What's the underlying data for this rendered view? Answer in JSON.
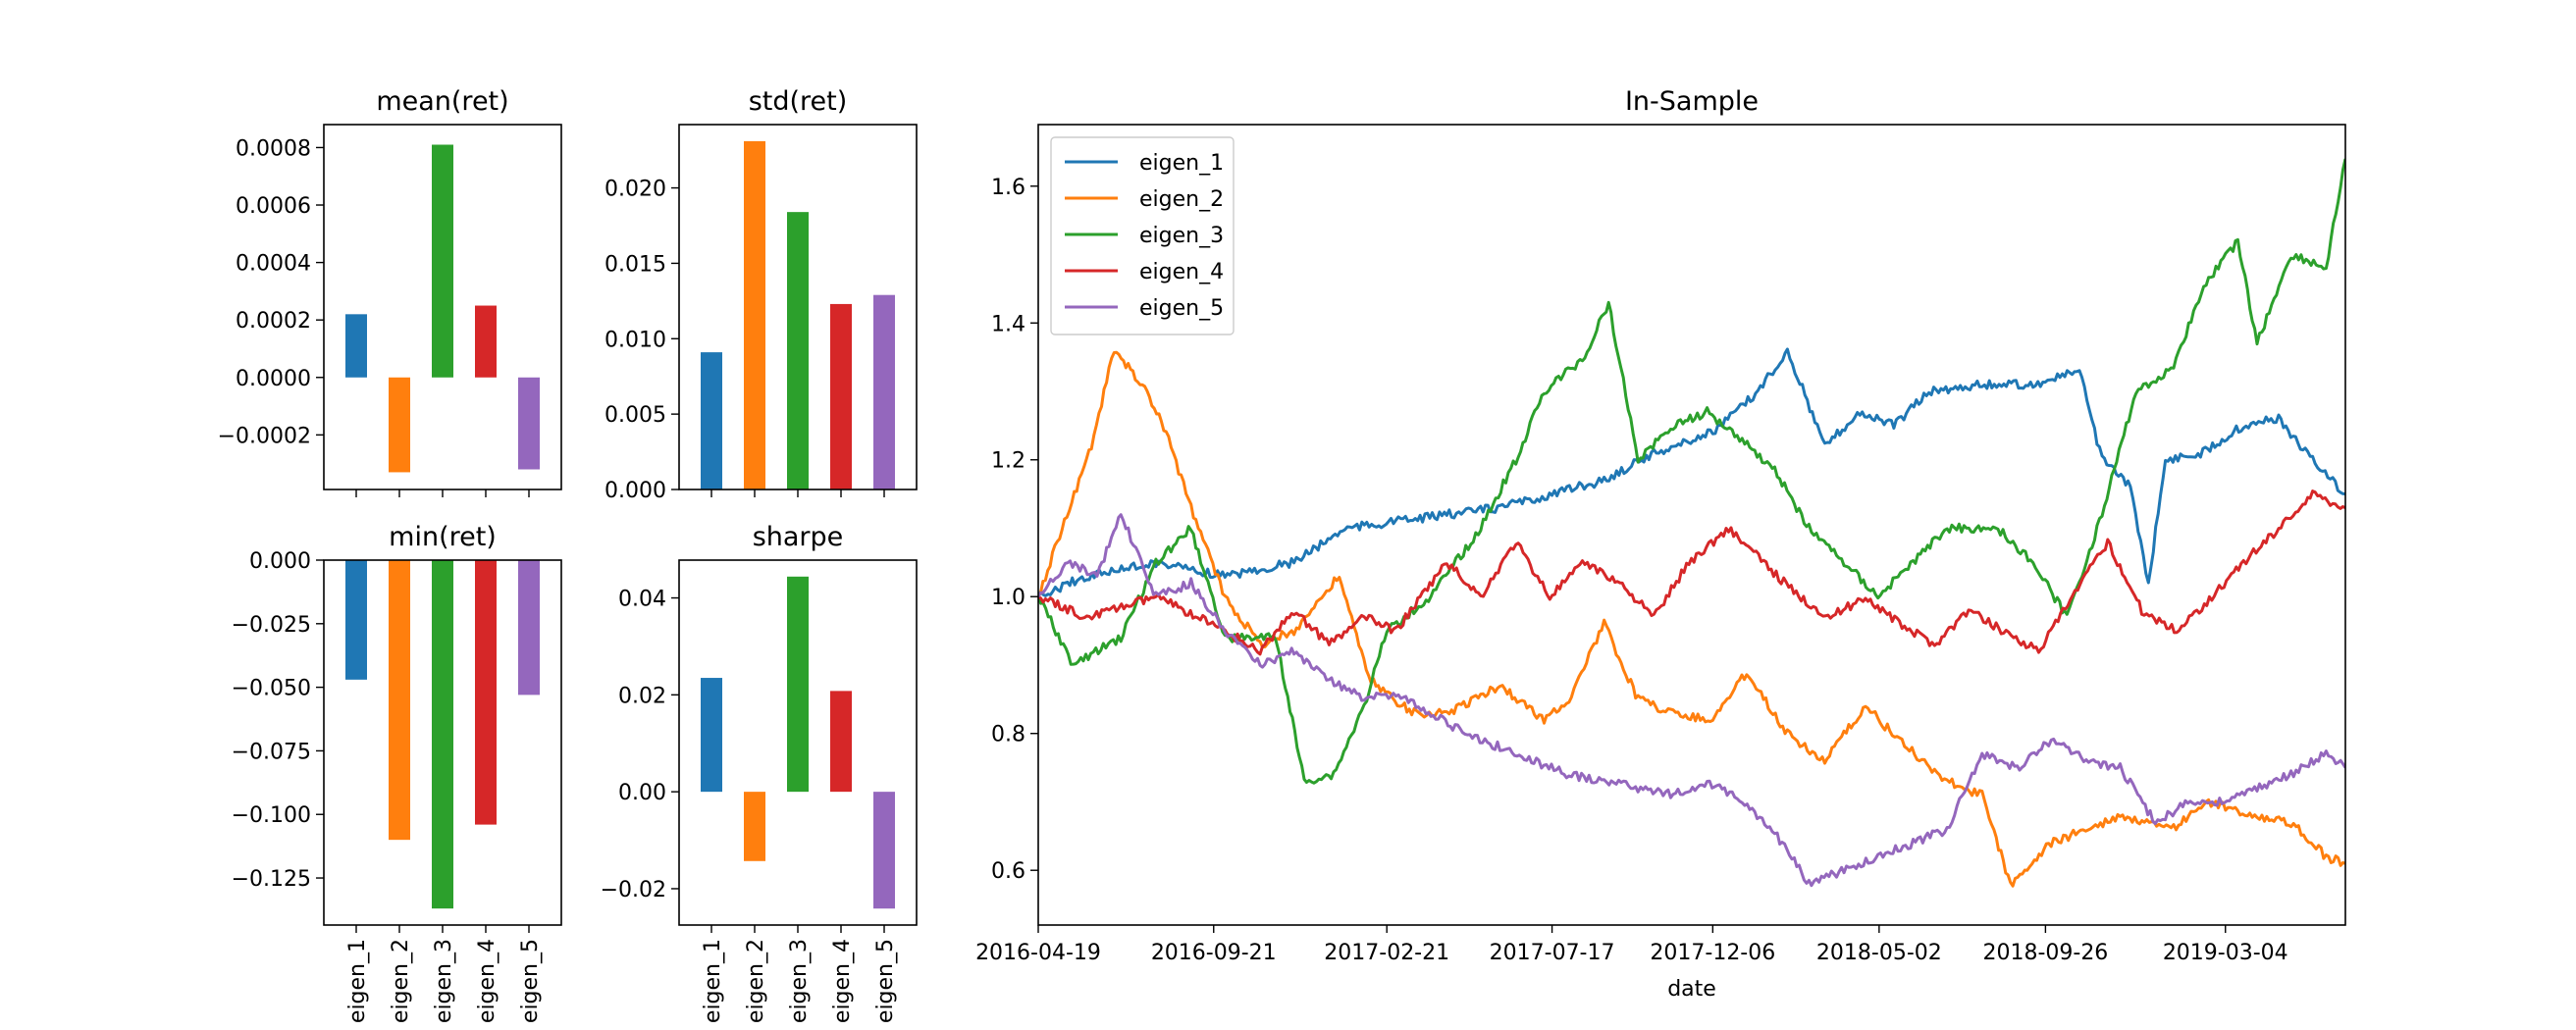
{
  "colors": {
    "eigen_1": "#1f77b4",
    "eigen_2": "#ff7f0e",
    "eigen_3": "#2ca02c",
    "eigen_4": "#d62728",
    "eigen_5": "#9467bd"
  },
  "chart_data": [
    {
      "type": "bar",
      "title": "mean(ret)",
      "categories": [
        "eigen_1",
        "eigen_2",
        "eigen_3",
        "eigen_4",
        "eigen_5"
      ],
      "values": [
        0.00022,
        -0.00033,
        0.00081,
        0.00025,
        -0.00032
      ],
      "ylim": [
        -0.00039,
        0.00088
      ],
      "yticks": [
        -0.0002,
        0.0,
        0.0002,
        0.0004,
        0.0006,
        0.0008
      ],
      "yticklabels": [
        "−0.0002",
        "0.0000",
        "0.0002",
        "0.0004",
        "0.0006",
        "0.0008"
      ],
      "show_xticklabels": false
    },
    {
      "type": "bar",
      "title": "std(ret)",
      "categories": [
        "eigen_1",
        "eigen_2",
        "eigen_3",
        "eigen_4",
        "eigen_5"
      ],
      "values": [
        0.0091,
        0.0231,
        0.0184,
        0.0123,
        0.0129
      ],
      "ylim": [
        0,
        0.0242
      ],
      "yticks": [
        0.0,
        0.005,
        0.01,
        0.015,
        0.02
      ],
      "yticklabels": [
        "0.000",
        "0.005",
        "0.010",
        "0.015",
        "0.020"
      ],
      "show_xticklabels": false
    },
    {
      "type": "bar",
      "title": "min(ret)",
      "categories": [
        "eigen_1",
        "eigen_2",
        "eigen_3",
        "eigen_4",
        "eigen_5"
      ],
      "values": [
        -0.047,
        -0.11,
        -0.137,
        -0.104,
        -0.053
      ],
      "ylim": [
        -0.1435,
        0
      ],
      "yticks": [
        -0.125,
        -0.1,
        -0.075,
        -0.05,
        -0.025,
        0.0
      ],
      "yticklabels": [
        "−0.125",
        "−0.100",
        "−0.075",
        "−0.050",
        "−0.025",
        "0.000"
      ],
      "show_xticklabels": true
    },
    {
      "type": "bar",
      "title": "sharpe",
      "categories": [
        "eigen_1",
        "eigen_2",
        "eigen_3",
        "eigen_4",
        "eigen_5"
      ],
      "values": [
        0.0235,
        -0.0143,
        0.0444,
        0.0208,
        -0.0241
      ],
      "ylim": [
        -0.0275,
        0.0478
      ],
      "yticks": [
        -0.02,
        0.0,
        0.02,
        0.04
      ],
      "yticklabels": [
        "−0.02",
        "0.00",
        "0.02",
        "0.04"
      ],
      "show_xticklabels": true
    },
    {
      "type": "line",
      "title": "In-Sample",
      "xlabel": "date",
      "x_range": [
        "2016-04-19",
        "2019-06-18"
      ],
      "xticks": [
        "2016-04-19",
        "2016-09-21",
        "2017-02-21",
        "2017-07-17",
        "2017-12-06",
        "2018-05-02",
        "2018-09-26",
        "2019-03-04"
      ],
      "ylim": [
        0.52,
        1.69
      ],
      "yticks": [
        0.6,
        0.8,
        1.0,
        1.2,
        1.4,
        1.6
      ],
      "yticklabels": [
        "0.6",
        "0.8",
        "1.0",
        "1.2",
        "1.4",
        "1.6"
      ],
      "legend": "top-left",
      "series": [
        {
          "name": "eigen_1",
          "points": [
            [
              "2016-04-19",
              1.0
            ],
            [
              "2016-06-01",
              1.03
            ],
            [
              "2016-08-01",
              1.05
            ],
            [
              "2016-10-01",
              1.03
            ],
            [
              "2016-12-01",
              1.05
            ],
            [
              "2017-01-15",
              1.1
            ],
            [
              "2017-03-01",
              1.11
            ],
            [
              "2017-04-15",
              1.12
            ],
            [
              "2017-06-01",
              1.13
            ],
            [
              "2017-07-17",
              1.15
            ],
            [
              "2017-09-01",
              1.17
            ],
            [
              "2017-10-15",
              1.21
            ],
            [
              "2017-12-06",
              1.24
            ],
            [
              "2018-01-15",
              1.3
            ],
            [
              "2018-02-10",
              1.36
            ],
            [
              "2018-03-15",
              1.22
            ],
            [
              "2018-04-15",
              1.27
            ],
            [
              "2018-05-15",
              1.25
            ],
            [
              "2018-06-15",
              1.3
            ],
            [
              "2018-08-01",
              1.31
            ],
            [
              "2018-09-15",
              1.31
            ],
            [
              "2018-10-26",
              1.33
            ],
            [
              "2018-11-15",
              1.2
            ],
            [
              "2018-12-10",
              1.16
            ],
            [
              "2018-12-26",
              1.02
            ],
            [
              "2019-01-10",
              1.2
            ],
            [
              "2019-02-10",
              1.21
            ],
            [
              "2019-03-20",
              1.25
            ],
            [
              "2019-04-20",
              1.26
            ],
            [
              "2019-05-20",
              1.2
            ],
            [
              "2019-06-18",
              1.15
            ]
          ]
        },
        {
          "name": "eigen_2",
          "points": [
            [
              "2016-04-19",
              1.0
            ],
            [
              "2016-05-10",
              1.1
            ],
            [
              "2016-06-05",
              1.22
            ],
            [
              "2016-06-25",
              1.36
            ],
            [
              "2016-07-20",
              1.31
            ],
            [
              "2016-08-10",
              1.24
            ],
            [
              "2016-09-01",
              1.13
            ],
            [
              "2016-10-01",
              1.0
            ],
            [
              "2016-11-01",
              0.93
            ],
            [
              "2016-12-01",
              0.95
            ],
            [
              "2017-01-10",
              1.03
            ],
            [
              "2017-02-05",
              0.88
            ],
            [
              "2017-03-15",
              0.83
            ],
            [
              "2017-04-15",
              0.83
            ],
            [
              "2017-06-01",
              0.87
            ],
            [
              "2017-07-10",
              0.82
            ],
            [
              "2017-08-01",
              0.85
            ],
            [
              "2017-09-01",
              0.96
            ],
            [
              "2017-10-01",
              0.85
            ],
            [
              "2017-11-01",
              0.83
            ],
            [
              "2017-12-06",
              0.82
            ],
            [
              "2018-01-05",
              0.89
            ],
            [
              "2018-02-10",
              0.8
            ],
            [
              "2018-03-15",
              0.76
            ],
            [
              "2018-04-20",
              0.84
            ],
            [
              "2018-05-20",
              0.79
            ],
            [
              "2018-07-01",
              0.73
            ],
            [
              "2018-08-01",
              0.71
            ],
            [
              "2018-08-26",
              0.58
            ],
            [
              "2018-10-01",
              0.64
            ],
            [
              "2018-12-01",
              0.68
            ],
            [
              "2019-01-15",
              0.66
            ],
            [
              "2019-02-15",
              0.7
            ],
            [
              "2019-04-01",
              0.68
            ],
            [
              "2019-05-01",
              0.67
            ],
            [
              "2019-06-01",
              0.62
            ],
            [
              "2019-06-18",
              0.61
            ]
          ]
        },
        {
          "name": "eigen_3",
          "points": [
            [
              "2016-04-19",
              1.0
            ],
            [
              "2016-05-20",
              0.9
            ],
            [
              "2016-07-01",
              0.94
            ],
            [
              "2016-08-01",
              1.05
            ],
            [
              "2016-09-01",
              1.1
            ],
            [
              "2016-10-01",
              0.94
            ],
            [
              "2016-11-15",
              0.94
            ],
            [
              "2016-12-10",
              0.73
            ],
            [
              "2017-01-05",
              0.74
            ],
            [
              "2017-02-01",
              0.84
            ],
            [
              "2017-02-21",
              0.95
            ],
            [
              "2017-04-01",
              1.0
            ],
            [
              "2017-05-15",
              1.1
            ],
            [
              "2017-06-15",
              1.2
            ],
            [
              "2017-07-10",
              1.3
            ],
            [
              "2017-08-15",
              1.35
            ],
            [
              "2017-09-05",
              1.43
            ],
            [
              "2017-10-01",
              1.2
            ],
            [
              "2017-11-01",
              1.25
            ],
            [
              "2017-12-01",
              1.27
            ],
            [
              "2018-01-01",
              1.23
            ],
            [
              "2018-02-01",
              1.18
            ],
            [
              "2018-03-01",
              1.1
            ],
            [
              "2018-04-01",
              1.05
            ],
            [
              "2018-05-01",
              1.0
            ],
            [
              "2018-06-01",
              1.05
            ],
            [
              "2018-07-01",
              1.1
            ],
            [
              "2018-08-15",
              1.1
            ],
            [
              "2018-09-15",
              1.05
            ],
            [
              "2018-10-15",
              0.97
            ],
            [
              "2018-11-15",
              1.12
            ],
            [
              "2018-12-15",
              1.3
            ],
            [
              "2019-01-15",
              1.33
            ],
            [
              "2019-02-15",
              1.46
            ],
            [
              "2019-03-15",
              1.52
            ],
            [
              "2019-04-01",
              1.37
            ],
            [
              "2019-05-01",
              1.5
            ],
            [
              "2019-06-01",
              1.48
            ],
            [
              "2019-06-18",
              1.64
            ]
          ]
        },
        {
          "name": "eigen_4",
          "points": [
            [
              "2016-04-19",
              1.0
            ],
            [
              "2016-06-01",
              0.97
            ],
            [
              "2016-08-01",
              1.0
            ],
            [
              "2016-10-01",
              0.95
            ],
            [
              "2016-11-01",
              0.92
            ],
            [
              "2016-12-01",
              0.98
            ],
            [
              "2017-01-01",
              0.93
            ],
            [
              "2017-02-01",
              0.97
            ],
            [
              "2017-03-01",
              0.95
            ],
            [
              "2017-04-15",
              1.05
            ],
            [
              "2017-05-15",
              1.0
            ],
            [
              "2017-06-15",
              1.08
            ],
            [
              "2017-07-15",
              1.0
            ],
            [
              "2017-08-15",
              1.05
            ],
            [
              "2017-09-15",
              1.02
            ],
            [
              "2017-10-15",
              0.97
            ],
            [
              "2017-11-15",
              1.05
            ],
            [
              "2017-12-20",
              1.1
            ],
            [
              "2018-01-20",
              1.05
            ],
            [
              "2018-02-20",
              1.0
            ],
            [
              "2018-03-20",
              0.97
            ],
            [
              "2018-04-20",
              1.0
            ],
            [
              "2018-05-20",
              0.96
            ],
            [
              "2018-06-20",
              0.93
            ],
            [
              "2018-07-20",
              0.98
            ],
            [
              "2018-08-20",
              0.95
            ],
            [
              "2018-09-20",
              0.92
            ],
            [
              "2018-10-20",
              1.0
            ],
            [
              "2018-11-20",
              1.08
            ],
            [
              "2018-12-20",
              0.98
            ],
            [
              "2019-01-20",
              0.95
            ],
            [
              "2019-02-20",
              1.0
            ],
            [
              "2019-03-20",
              1.05
            ],
            [
              "2019-04-20",
              1.1
            ],
            [
              "2019-05-20",
              1.15
            ],
            [
              "2019-06-18",
              1.13
            ]
          ]
        },
        {
          "name": "eigen_5",
          "points": [
            [
              "2016-04-19",
              1.0
            ],
            [
              "2016-05-15",
              1.05
            ],
            [
              "2016-06-10",
              1.03
            ],
            [
              "2016-07-01",
              1.12
            ],
            [
              "2016-08-01",
              1.0
            ],
            [
              "2016-09-01",
              1.02
            ],
            [
              "2016-10-01",
              0.95
            ],
            [
              "2016-11-01",
              0.9
            ],
            [
              "2016-12-01",
              0.92
            ],
            [
              "2017-01-01",
              0.88
            ],
            [
              "2017-02-01",
              0.85
            ],
            [
              "2017-03-01",
              0.86
            ],
            [
              "2017-04-01",
              0.83
            ],
            [
              "2017-05-01",
              0.8
            ],
            [
              "2017-06-01",
              0.78
            ],
            [
              "2017-07-01",
              0.76
            ],
            [
              "2017-08-01",
              0.74
            ],
            [
              "2017-09-01",
              0.73
            ],
            [
              "2017-10-01",
              0.72
            ],
            [
              "2017-11-01",
              0.71
            ],
            [
              "2017-12-01",
              0.73
            ],
            [
              "2018-01-01",
              0.7
            ],
            [
              "2018-02-01",
              0.65
            ],
            [
              "2018-03-01",
              0.58
            ],
            [
              "2018-04-01",
              0.6
            ],
            [
              "2018-05-01",
              0.62
            ],
            [
              "2018-06-01",
              0.64
            ],
            [
              "2018-07-01",
              0.66
            ],
            [
              "2018-08-01",
              0.77
            ],
            [
              "2018-09-01",
              0.75
            ],
            [
              "2018-10-01",
              0.79
            ],
            [
              "2018-11-01",
              0.76
            ],
            [
              "2018-12-01",
              0.75
            ],
            [
              "2019-01-01",
              0.67
            ],
            [
              "2019-02-01",
              0.7
            ],
            [
              "2019-03-01",
              0.7
            ],
            [
              "2019-04-01",
              0.72
            ],
            [
              "2019-05-01",
              0.74
            ],
            [
              "2019-06-01",
              0.77
            ],
            [
              "2019-06-18",
              0.75
            ]
          ]
        }
      ]
    }
  ]
}
